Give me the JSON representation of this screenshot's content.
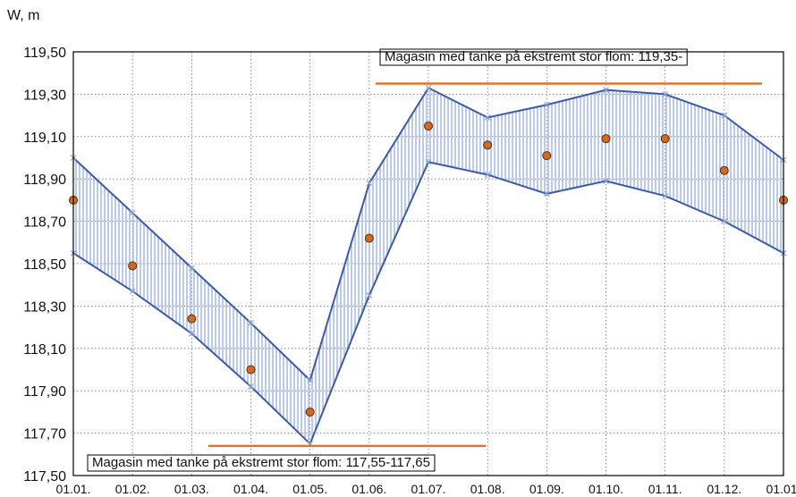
{
  "chart_data": {
    "type": "band",
    "y_label": "W, m",
    "categories": [
      "01.01.",
      "01.02.",
      "01.03.",
      "01.04.",
      "01.05.",
      "01.06.",
      "01.07.",
      "01.08.",
      "01.09.",
      "01.10.",
      "01.11.",
      "01.12.",
      "01.01."
    ],
    "series": [
      {
        "name": "upper",
        "color": "#3b5ba8",
        "values": [
          119.0,
          118.74,
          118.48,
          118.22,
          117.95,
          118.88,
          119.33,
          119.19,
          119.25,
          119.32,
          119.3,
          119.2,
          118.99
        ]
      },
      {
        "name": "lower",
        "color": "#3b5ba8",
        "values": [
          118.55,
          118.37,
          118.17,
          117.92,
          117.65,
          118.35,
          118.98,
          118.92,
          118.83,
          118.89,
          118.82,
          118.7,
          118.55
        ]
      },
      {
        "name": "observed",
        "color": "#d2691e",
        "values": [
          118.8,
          118.49,
          118.24,
          118.0,
          117.8,
          118.62,
          119.15,
          119.06,
          119.01,
          119.09,
          119.09,
          118.94,
          118.8
        ]
      }
    ],
    "band_color": "#a9bce6",
    "reference_lines": [
      {
        "label": "Magasin med tanke på ekstremt stor flom: 119,35-",
        "value": 119.35,
        "color": "#e3742f"
      },
      {
        "label": "Magasin med tanke på ekstremt stor flom: 117,55-117,65",
        "value": 117.64,
        "color": "#e3742f"
      }
    ],
    "ylim": [
      117.5,
      119.5
    ],
    "yticks": [
      {
        "value": 117.5,
        "label": "117,50"
      },
      {
        "value": 117.7,
        "label": "117,70"
      },
      {
        "value": 117.9,
        "label": "117,90"
      },
      {
        "value": 118.1,
        "label": "118,10"
      },
      {
        "value": 118.3,
        "label": "118,30"
      },
      {
        "value": 118.5,
        "label": "118,50"
      },
      {
        "value": 118.7,
        "label": "118,70"
      },
      {
        "value": 118.9,
        "label": "118,90"
      },
      {
        "value": 119.1,
        "label": "119,10"
      },
      {
        "value": 119.3,
        "label": "119,30"
      },
      {
        "value": 119.5,
        "label": "119,50"
      }
    ],
    "grid": true
  }
}
